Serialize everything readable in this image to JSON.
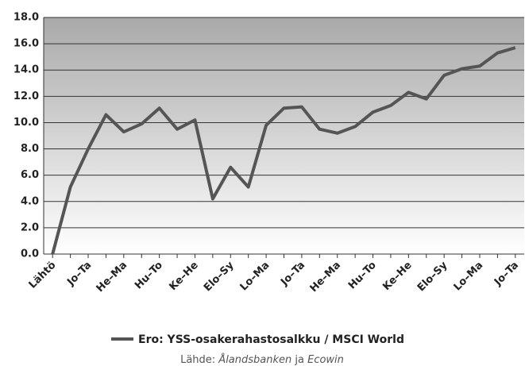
{
  "chart_data": {
    "type": "line",
    "categories": [
      "Lähtö",
      null,
      "Jo–Ta",
      null,
      "He–Ma",
      null,
      "Hu–To",
      null,
      "Ke–He",
      null,
      "Elo–Sy",
      null,
      "Lo–Ma",
      null,
      "Jo–Ta",
      null,
      "He–Ma",
      null,
      "Hu–To",
      null,
      "Ke–He",
      null,
      "Elo–Sy",
      null,
      "Lo–Ma",
      null,
      "Jo–Ta"
    ],
    "series": [
      {
        "name": "Ero: YSS-osakerahastosalkku / MSCI World",
        "color": "#555555",
        "values": [
          0,
          5.1,
          8.0,
          10.6,
          9.3,
          9.9,
          11.1,
          9.5,
          10.2,
          4.2,
          6.6,
          5.1,
          9.8,
          11.1,
          11.2,
          9.5,
          9.2,
          9.7,
          10.8,
          11.3,
          12.3,
          11.8,
          13.6,
          14.1,
          14.3,
          15.3,
          15.7
        ]
      }
    ],
    "ylim": [
      0,
      18
    ],
    "yticks": [
      {
        "value": 0,
        "label": "0.0"
      },
      {
        "value": 2,
        "label": "2.0"
      },
      {
        "value": 4,
        "label": "4.0"
      },
      {
        "value": 6,
        "label": "6.0"
      },
      {
        "value": 8,
        "label": "8.0"
      },
      {
        "value": 10,
        "label": "10.0"
      },
      {
        "value": 12,
        "label": "12.0"
      },
      {
        "value": 14,
        "label": "14.0"
      },
      {
        "value": 16,
        "label": "16.0"
      },
      {
        "value": 18,
        "label": "18.0"
      }
    ],
    "grid": true,
    "source": {
      "prefix": "Lähde: ",
      "first": "Ålandsbanken",
      "middle": " ja ",
      "second": "Ecowin"
    }
  }
}
